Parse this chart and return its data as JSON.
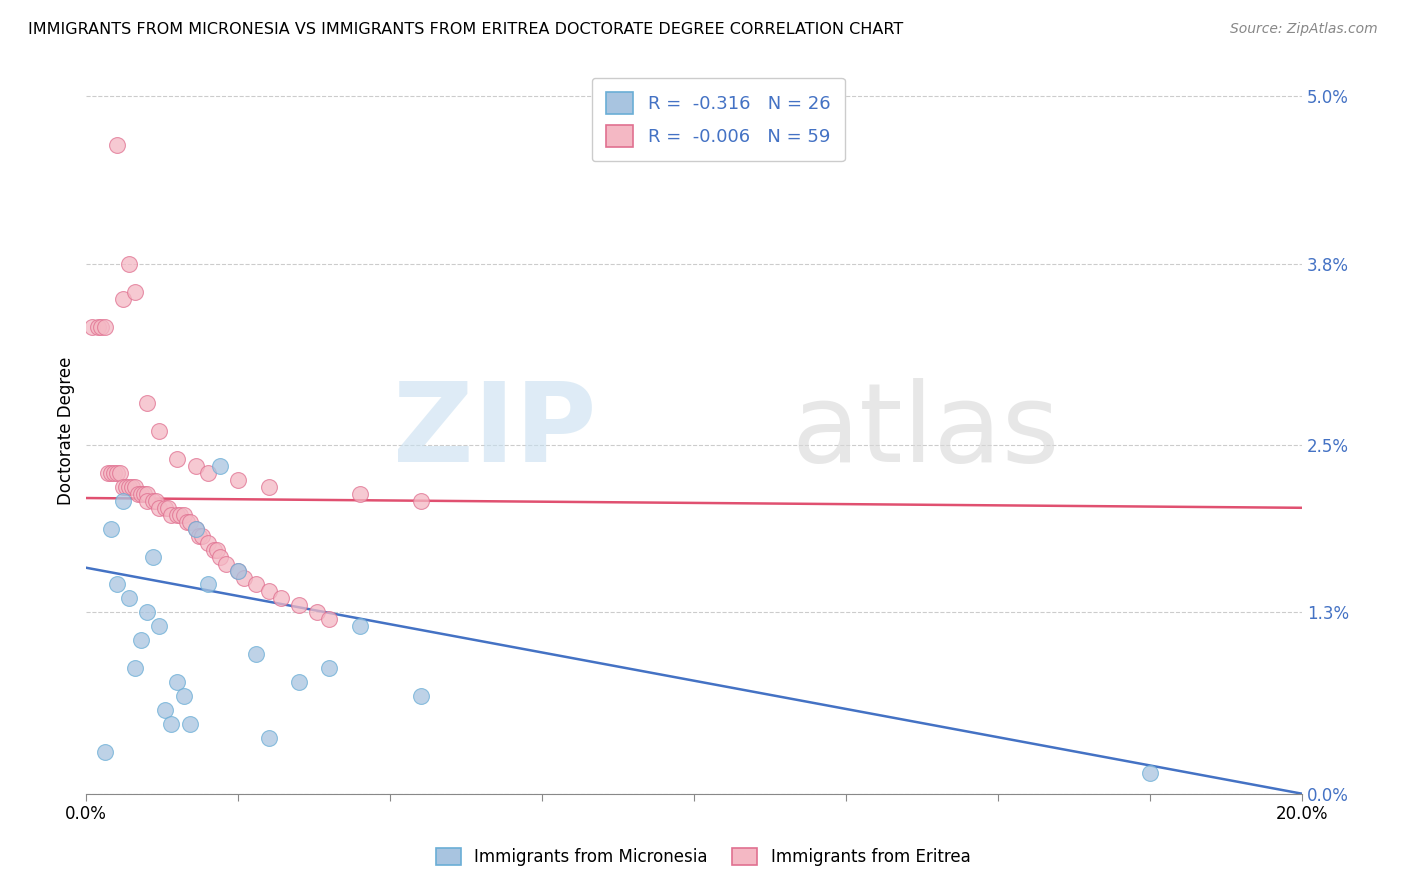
{
  "title": "IMMIGRANTS FROM MICRONESIA VS IMMIGRANTS FROM ERITREA DOCTORATE DEGREE CORRELATION CHART",
  "source": "Source: ZipAtlas.com",
  "ylabel": "Doctorate Degree",
  "ytick_vals": [
    0.0,
    1.3,
    2.5,
    3.8,
    5.0
  ],
  "xlim": [
    0.0,
    20.0
  ],
  "ylim": [
    0.0,
    5.2
  ],
  "legend_blue_r": "-0.316",
  "legend_blue_n": "26",
  "legend_pink_r": "-0.006",
  "legend_pink_n": "59",
  "blue_scatter_color": "#a8c4e0",
  "pink_scatter_color": "#f4b8c4",
  "blue_edge_color": "#6aaed6",
  "pink_edge_color": "#e07090",
  "blue_line_color": "#4472c4",
  "pink_line_color": "#e05070",
  "blue_reg_x0": 0.0,
  "blue_reg_y0": 1.62,
  "blue_reg_x1": 20.0,
  "blue_reg_y1": 0.0,
  "pink_reg_x0": 0.0,
  "pink_reg_y0": 2.12,
  "pink_reg_x1": 20.0,
  "pink_reg_y1": 2.05,
  "micronesia_x": [
    0.3,
    0.4,
    0.5,
    0.6,
    0.7,
    0.8,
    0.9,
    1.0,
    1.1,
    1.2,
    1.3,
    1.4,
    1.5,
    1.6,
    1.7,
    1.8,
    2.0,
    2.2,
    2.5,
    2.8,
    3.0,
    3.5,
    4.0,
    4.5,
    5.5,
    17.5
  ],
  "micronesia_y": [
    0.3,
    1.9,
    1.5,
    2.1,
    1.4,
    0.9,
    1.1,
    1.3,
    1.7,
    1.2,
    0.6,
    0.5,
    0.8,
    0.7,
    0.5,
    1.9,
    1.5,
    2.35,
    1.6,
    1.0,
    0.4,
    0.8,
    0.9,
    1.2,
    0.7,
    0.15
  ],
  "eritrea_x": [
    0.1,
    0.2,
    0.25,
    0.3,
    0.35,
    0.4,
    0.45,
    0.5,
    0.55,
    0.6,
    0.65,
    0.7,
    0.75,
    0.8,
    0.85,
    0.9,
    0.95,
    1.0,
    1.0,
    1.1,
    1.15,
    1.2,
    1.3,
    1.35,
    1.4,
    1.5,
    1.55,
    1.6,
    1.65,
    1.7,
    1.8,
    1.85,
    1.9,
    2.0,
    2.1,
    2.15,
    2.2,
    2.3,
    2.5,
    2.6,
    2.8,
    3.0,
    3.2,
    3.5,
    3.8,
    4.0,
    0.5,
    0.6,
    0.7,
    0.8,
    1.0,
    1.2,
    1.5,
    1.8,
    2.0,
    2.5,
    3.0,
    4.5,
    5.5
  ],
  "eritrea_y": [
    3.35,
    3.35,
    3.35,
    3.35,
    2.3,
    2.3,
    2.3,
    2.3,
    2.3,
    2.2,
    2.2,
    2.2,
    2.2,
    2.2,
    2.15,
    2.15,
    2.15,
    2.15,
    2.1,
    2.1,
    2.1,
    2.05,
    2.05,
    2.05,
    2.0,
    2.0,
    2.0,
    2.0,
    1.95,
    1.95,
    1.9,
    1.85,
    1.85,
    1.8,
    1.75,
    1.75,
    1.7,
    1.65,
    1.6,
    1.55,
    1.5,
    1.45,
    1.4,
    1.35,
    1.3,
    1.25,
    4.65,
    3.55,
    3.8,
    3.6,
    2.8,
    2.6,
    2.4,
    2.35,
    2.3,
    2.25,
    2.2,
    2.15,
    2.1
  ]
}
